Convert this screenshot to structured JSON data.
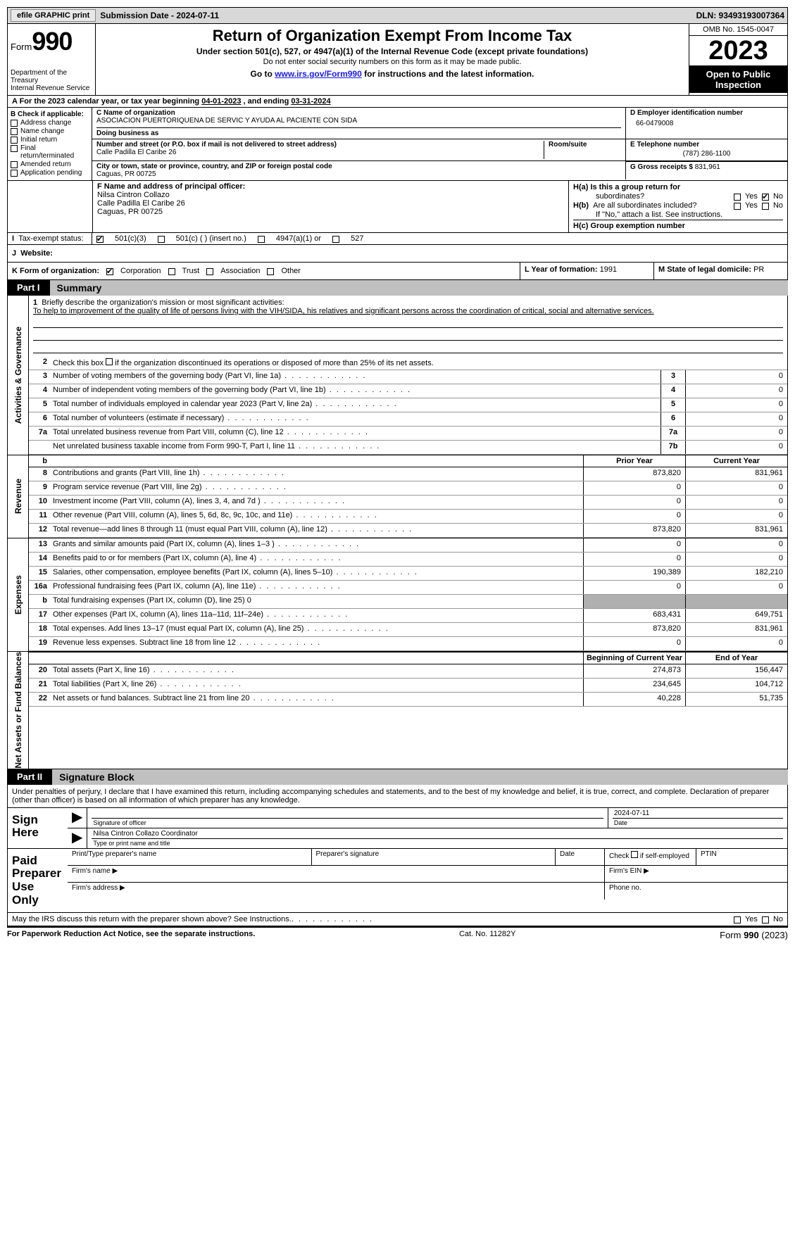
{
  "topbar": {
    "efile_label": "efile GRAPHIC print",
    "submission_label": "Submission Date - 2024-07-11",
    "dln": "DLN: 93493193007364"
  },
  "header": {
    "form_prefix": "Form",
    "form_number": "990",
    "dept": "Department of the Treasury",
    "irs": "Internal Revenue Service",
    "title": "Return of Organization Exempt From Income Tax",
    "subtitle": "Under section 501(c), 527, or 4947(a)(1) of the Internal Revenue Code (except private foundations)",
    "note": "Do not enter social security numbers on this form as it may be made public.",
    "goto_pre": "Go to ",
    "goto_link": "www.irs.gov/Form990",
    "goto_post": " for instructions and the latest information.",
    "omb": "OMB No. 1545-0047",
    "year": "2023",
    "open_inspection": "Open to Public Inspection"
  },
  "period": {
    "text_pre": "A For the 2023 calendar year, or tax year beginning ",
    "begin": "04-01-2023",
    "mid": "  , and ending ",
    "end": "03-31-2024"
  },
  "section_b": {
    "header": "B Check if applicable:",
    "items": [
      "Address change",
      "Name change",
      "Initial return",
      "Final return/terminated",
      "Amended return",
      "Application pending"
    ]
  },
  "section_c": {
    "name_label": "C Name of organization",
    "name": "ASOCIACION PUERTORIQUENA DE SERVIC Y AYUDA AL PACIENTE CON SIDA",
    "dba_label": "Doing business as",
    "dba": "",
    "street_label": "Number and street (or P.O. box if mail is not delivered to street address)",
    "room_label": "Room/suite",
    "street": "Calle Padilla El Caribe 26",
    "city_label": "City or town, state or province, country, and ZIP or foreign postal code",
    "city": "Caguas, PR  00725"
  },
  "section_d": {
    "ein_label": "D Employer identification number",
    "ein": "66-0479008",
    "phone_label": "E Telephone number",
    "phone": "(787) 286-1100",
    "gross_label": "G Gross receipts $",
    "gross": "831,961"
  },
  "section_f": {
    "label": "F  Name and address of principal officer:",
    "name": "Nilsa Cintron Collazo",
    "street": "Calle Padilla El Caribe 26",
    "city": "Caguas, PR  00725"
  },
  "section_h": {
    "a_label": "H(a)  Is this a group return for",
    "a_label2": "subordinates?",
    "a_no_checked": true,
    "b_label": "H(b)  Are all subordinates included?",
    "b_note": "If \"No,\" attach a list. See instructions.",
    "c_label": "H(c)  Group exemption number ",
    "yes": "Yes",
    "no": "No"
  },
  "section_i": {
    "label": "Tax-exempt status:",
    "opt1": "501(c)(3)",
    "opt1_checked": true,
    "opt2": "501(c) (  ) (insert no.)",
    "opt3": "4947(a)(1) or",
    "opt4": "527"
  },
  "section_j": {
    "label": "Website:",
    "value": ""
  },
  "section_k": {
    "label": "K Form of organization:",
    "corp": "Corporation",
    "corp_checked": true,
    "trust": "Trust",
    "assoc": "Association",
    "other": "Other"
  },
  "section_l": {
    "label": "L Year of formation:",
    "value": "1991"
  },
  "section_m": {
    "label": "M State of legal domicile:",
    "value": "PR"
  },
  "parts": {
    "p1_tag": "Part I",
    "p1_title": "Summary",
    "p2_tag": "Part II",
    "p2_title": "Signature Block"
  },
  "vtabs": {
    "gov": "Activities & Governance",
    "rev": "Revenue",
    "exp": "Expenses",
    "net": "Net Assets or Fund Balances"
  },
  "summary": {
    "line1_label": "Briefly describe the organization's mission or most significant activities:",
    "line1_text": "To help to improvement of the quality of life of persons living with the VIH/SIDA, his relatives and significant persons across the coordination of critical, social and alternative services.",
    "line2": "Check this box      if the organization discontinued its operations or disposed of more than 25% of its net assets.",
    "small_lines": [
      {
        "n": "3",
        "t": "Number of voting members of the governing body (Part VI, line 1a)",
        "id": "3",
        "v": "0"
      },
      {
        "n": "4",
        "t": "Number of independent voting members of the governing body (Part VI, line 1b)",
        "id": "4",
        "v": "0"
      },
      {
        "n": "5",
        "t": "Total number of individuals employed in calendar year 2023 (Part V, line 2a)",
        "id": "5",
        "v": "0"
      },
      {
        "n": "6",
        "t": "Total number of volunteers (estimate if necessary)",
        "id": "6",
        "v": "0"
      },
      {
        "n": "7a",
        "t": "Total unrelated business revenue from Part VIII, column (C), line 12",
        "id": "7a",
        "v": "0"
      },
      {
        "n": "",
        "t": "Net unrelated business taxable income from Form 990-T, Part I, line 11",
        "id": "7b",
        "v": "0"
      }
    ],
    "col_prior": "Prior Year",
    "col_current": "Current Year",
    "rev_lines": [
      {
        "n": "8",
        "t": "Contributions and grants (Part VIII, line 1h)",
        "p": "873,820",
        "c": "831,961"
      },
      {
        "n": "9",
        "t": "Program service revenue (Part VIII, line 2g)",
        "p": "0",
        "c": "0"
      },
      {
        "n": "10",
        "t": "Investment income (Part VIII, column (A), lines 3, 4, and 7d )",
        "p": "0",
        "c": "0"
      },
      {
        "n": "11",
        "t": "Other revenue (Part VIII, column (A), lines 5, 6d, 8c, 9c, 10c, and 11e)",
        "p": "0",
        "c": "0"
      },
      {
        "n": "12",
        "t": "Total revenue—add lines 8 through 11 (must equal Part VIII, column (A), line 12)",
        "p": "873,820",
        "c": "831,961"
      }
    ],
    "exp_lines": [
      {
        "n": "13",
        "t": "Grants and similar amounts paid (Part IX, column (A), lines 1–3 )",
        "p": "0",
        "c": "0"
      },
      {
        "n": "14",
        "t": "Benefits paid to or for members (Part IX, column (A), line 4)",
        "p": "0",
        "c": "0"
      },
      {
        "n": "15",
        "t": "Salaries, other compensation, employee benefits (Part IX, column (A), lines 5–10)",
        "p": "190,389",
        "c": "182,210"
      },
      {
        "n": "16a",
        "t": "Professional fundraising fees (Part IX, column (A), line 11e)",
        "p": "0",
        "c": "0"
      },
      {
        "n": "b",
        "t": "Total fundraising expenses (Part IX, column (D), line 25) 0",
        "p": "__shade__",
        "c": "__shade__"
      },
      {
        "n": "17",
        "t": "Other expenses (Part IX, column (A), lines 11a–11d, 11f–24e)",
        "p": "683,431",
        "c": "649,751"
      },
      {
        "n": "18",
        "t": "Total expenses. Add lines 13–17 (must equal Part IX, column (A), line 25)",
        "p": "873,820",
        "c": "831,961"
      },
      {
        "n": "19",
        "t": "Revenue less expenses. Subtract line 18 from line 12",
        "p": "0",
        "c": "0"
      }
    ],
    "col_begin": "Beginning of Current Year",
    "col_end": "End of Year",
    "net_lines": [
      {
        "n": "20",
        "t": "Total assets (Part X, line 16)",
        "p": "274,873",
        "c": "156,447"
      },
      {
        "n": "21",
        "t": "Total liabilities (Part X, line 26)",
        "p": "234,645",
        "c": "104,712"
      },
      {
        "n": "22",
        "t": "Net assets or fund balances. Subtract line 21 from line 20",
        "p": "40,228",
        "c": "51,735"
      }
    ]
  },
  "signature": {
    "intro": "Under penalties of perjury, I declare that I have examined this return, including accompanying schedules and statements, and to the best of my knowledge and belief, it is true, correct, and complete. Declaration of preparer (other than officer) is based on all information of which preparer has any knowledge.",
    "sign_here": "Sign Here",
    "sig_officer_label": "Signature of officer",
    "date_label": "Date",
    "date_value": "2024-07-11",
    "officer_name": "Nilsa Cintron Collazo  Coordinator",
    "type_label": "Type or print name and title",
    "paid": "Paid Preparer Use Only",
    "prep_name_label": "Print/Type preparer's name",
    "prep_sig_label": "Preparer's signature",
    "check_self": "Check        if self-employed",
    "ptin_label": "PTIN",
    "firm_name_label": "Firm's name  ",
    "firm_ein_label": "Firm's EIN  ",
    "firm_addr_label": "Firm's address  ",
    "phone_label": "Phone no."
  },
  "discuss": {
    "text": "May the IRS discuss this return with the preparer shown above? See Instructions.",
    "yes": "Yes",
    "no": "No"
  },
  "footer": {
    "left": "For Paperwork Reduction Act Notice, see the separate instructions.",
    "mid": "Cat. No. 11282Y",
    "right_pre": "Form ",
    "right_bold": "990",
    "right_post": " (2023)"
  },
  "colors": {
    "topbar_bg": "#d8d8d8",
    "part_title_bg": "#c0c0c0",
    "shade_bg": "#b0b0b0",
    "link": "#1a1af0"
  }
}
